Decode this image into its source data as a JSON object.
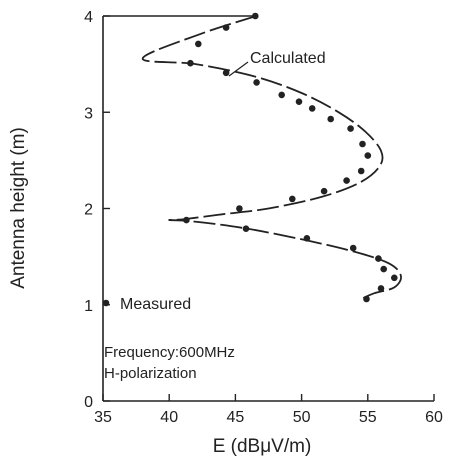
{
  "chart_data": {
    "type": "scatter",
    "xlabel": "E (dBμV/m)",
    "ylabel": "Antenna height (m)",
    "xlim": [
      35,
      60
    ],
    "ylim": [
      0,
      4
    ],
    "xticks": [
      35,
      40,
      45,
      50,
      55,
      60
    ],
    "yticks": [
      0,
      1,
      2,
      3,
      4
    ],
    "grid": false,
    "annotations": {
      "calculated": "Calculated",
      "frequency": "Frequency:600MHz",
      "polarization": "H-polarization"
    },
    "legend": {
      "measured": "Measured"
    },
    "series": [
      {
        "name": "Calculated",
        "style": "dashed-line",
        "points": [
          [
            46.6,
            4.0
          ],
          [
            42.5,
            3.82
          ],
          [
            38.0,
            3.56
          ],
          [
            42.0,
            3.5
          ],
          [
            46.5,
            3.37
          ],
          [
            50.0,
            3.2
          ],
          [
            52.8,
            3.0
          ],
          [
            54.8,
            2.8
          ],
          [
            56.0,
            2.6
          ],
          [
            55.9,
            2.44
          ],
          [
            54.4,
            2.27
          ],
          [
            51.5,
            2.12
          ],
          [
            47.5,
            2.0
          ],
          [
            44.0,
            1.94
          ],
          [
            41.2,
            1.89
          ],
          [
            40.0,
            1.88
          ],
          [
            41.5,
            1.87
          ],
          [
            45.5,
            1.8
          ],
          [
            50.0,
            1.68
          ],
          [
            54.0,
            1.55
          ],
          [
            56.6,
            1.43
          ],
          [
            57.5,
            1.3
          ],
          [
            57.0,
            1.18
          ],
          [
            55.5,
            1.12
          ],
          [
            54.5,
            1.06
          ]
        ]
      },
      {
        "name": "Measured",
        "style": "dots",
        "points": [
          [
            46.5,
            4.0
          ],
          [
            44.3,
            3.88
          ],
          [
            42.2,
            3.71
          ],
          [
            41.6,
            3.51
          ],
          [
            44.3,
            3.41
          ],
          [
            46.6,
            3.31
          ],
          [
            48.5,
            3.18
          ],
          [
            49.8,
            3.11
          ],
          [
            50.8,
            3.04
          ],
          [
            52.2,
            2.93
          ],
          [
            53.7,
            2.83
          ],
          [
            54.6,
            2.67
          ],
          [
            55.0,
            2.55
          ],
          [
            54.5,
            2.39
          ],
          [
            53.4,
            2.29
          ],
          [
            51.7,
            2.18
          ],
          [
            49.3,
            2.1
          ],
          [
            45.3,
            2.0
          ],
          [
            41.3,
            1.88
          ],
          [
            45.8,
            1.79
          ],
          [
            50.4,
            1.69
          ],
          [
            53.9,
            1.59
          ],
          [
            55.8,
            1.48
          ],
          [
            56.2,
            1.37
          ],
          [
            57.0,
            1.28
          ],
          [
            56.0,
            1.17
          ],
          [
            54.9,
            1.06
          ]
        ]
      }
    ]
  }
}
